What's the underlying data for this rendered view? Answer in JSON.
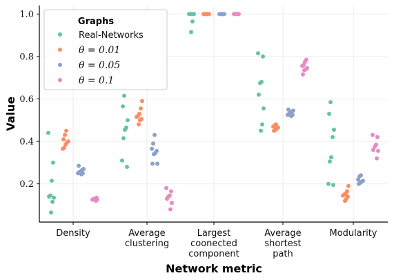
{
  "chart_data": {
    "type": "scatter",
    "xlabel": "Network metric",
    "ylabel": "Value",
    "ylim": [
      0.02,
      1.04
    ],
    "yticks": [
      "0.2",
      "0.4",
      "0.6",
      "0.8",
      "1.0"
    ],
    "grid": true,
    "legend": {
      "title": "Graphs",
      "placement": "top-left"
    },
    "categories": [
      [
        "Density"
      ],
      [
        "Average",
        "clustering"
      ],
      [
        "Largest",
        "coonected",
        "component"
      ],
      [
        "Average",
        "shortest",
        "path"
      ],
      [
        "Modularity"
      ]
    ],
    "series": [
      {
        "name": "Real-Networks",
        "color": "#66c2a5",
        "values": [
          [
            0.44,
            0.3,
            0.215,
            0.145,
            0.14,
            0.135,
            0.115,
            0.065
          ],
          [
            0.615,
            0.565,
            0.5,
            0.465,
            0.455,
            0.415,
            0.31,
            0.28
          ],
          [
            1.0,
            1.0,
            1.0,
            1.0,
            1.0,
            0.965,
            0.915
          ],
          [
            0.815,
            0.8,
            0.68,
            0.675,
            0.62,
            0.555,
            0.48,
            0.45
          ],
          [
            0.585,
            0.53,
            0.455,
            0.42,
            0.325,
            0.305,
            0.2,
            0.195
          ]
        ]
      },
      {
        "name": "θ = 0.01",
        "color": "#fc8d62",
        "values": [
          [
            0.45,
            0.43,
            0.41,
            0.4,
            0.395,
            0.385,
            0.37,
            0.365
          ],
          [
            0.59,
            0.555,
            0.53,
            0.52,
            0.515,
            0.505,
            0.5,
            0.48
          ],
          [
            1.0,
            1.0,
            1.0,
            1.0,
            1.0,
            1.0,
            1.0,
            1.0
          ],
          [
            0.48,
            0.475,
            0.47,
            0.465,
            0.46,
            0.455,
            0.45
          ],
          [
            0.19,
            0.165,
            0.155,
            0.15,
            0.145,
            0.14,
            0.13,
            0.12
          ]
        ]
      },
      {
        "name": "θ = 0.05",
        "color": "#8da0cb",
        "values": [
          [
            0.285,
            0.27,
            0.265,
            0.26,
            0.255,
            0.25,
            0.25,
            0.245
          ],
          [
            0.43,
            0.39,
            0.365,
            0.355,
            0.345,
            0.34,
            0.295,
            0.295
          ],
          [
            1.0,
            1.0,
            1.0,
            1.0,
            1.0,
            1.0,
            1.0,
            1.0
          ],
          [
            0.55,
            0.545,
            0.54,
            0.535,
            0.53,
            0.525,
            0.525,
            0.52
          ],
          [
            0.24,
            0.235,
            0.22,
            0.215,
            0.21,
            0.205,
            0.2
          ]
        ]
      },
      {
        "name": "θ = 0.1",
        "color": "#e78ac3",
        "values": [
          [
            0.135,
            0.13,
            0.13,
            0.125,
            0.125,
            0.12
          ],
          [
            0.18,
            0.165,
            0.145,
            0.14,
            0.13,
            0.11,
            0.08
          ],
          [
            1.0,
            1.0,
            1.0,
            1.0,
            1.0,
            1.0
          ],
          [
            0.785,
            0.775,
            0.76,
            0.755,
            0.745,
            0.74,
            0.735,
            0.715
          ],
          [
            0.43,
            0.42,
            0.385,
            0.375,
            0.36,
            0.355,
            0.32
          ]
        ]
      }
    ]
  }
}
